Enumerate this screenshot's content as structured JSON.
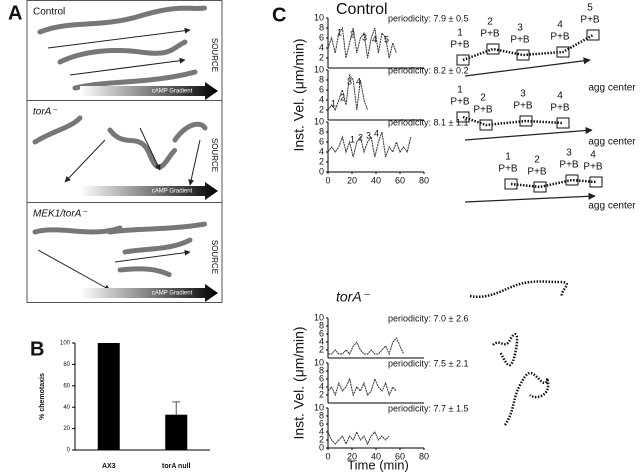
{
  "panel_labels": [
    "A",
    "B",
    "C"
  ],
  "panel_a": {
    "panels": [
      {
        "label": "Control",
        "side_label": "SOURCE",
        "gradient_label": "cAMP Gradient"
      },
      {
        "label": "torA⁻",
        "side_label": "SOURCE",
        "gradient_label": "cAMP Gradient"
      },
      {
        "label": "MEK1/torA⁻",
        "side_label": "SOURCE",
        "gradient_label": "cAMP Gradient"
      }
    ]
  },
  "panel_c": {
    "groups": [
      "Control",
      "torA⁻"
    ],
    "tracks": [
      {
        "markers": [
          "1",
          "2",
          "3",
          "4",
          "5"
        ],
        "marker_label": "P+B",
        "end_label": "agg center"
      },
      {
        "markers": [
          "1",
          "2",
          "3",
          "4"
        ],
        "marker_label": "P+B",
        "end_label": "agg center"
      },
      {
        "markers": [
          "1",
          "2",
          "3",
          "4"
        ],
        "marker_label": "P+B",
        "end_label": "agg center"
      }
    ]
  },
  "chart_data": [
    {
      "type": "bar",
      "ylabel": "% chemotaxis",
      "categories": [
        "AX3",
        "torA null"
      ],
      "values": [
        100,
        33
      ],
      "errors": [
        null,
        12
      ],
      "color": "#000000",
      "ylim": [
        0,
        100
      ],
      "yticks": [
        0,
        20,
        40,
        60,
        80,
        100
      ]
    },
    {
      "type": "line",
      "ylabel": "Inst. Vel. (μm/min)",
      "annotation": "periodicity: 7.9 ± 0.5",
      "peak_labels": [
        "1",
        "2",
        "3",
        "4",
        "5"
      ],
      "x": [
        0,
        3,
        6,
        9,
        12,
        15,
        18,
        21,
        24,
        27,
        30,
        33,
        36,
        39,
        42,
        45,
        48,
        51,
        54,
        57
      ],
      "values": [
        4,
        6,
        3,
        7,
        8,
        2,
        5,
        8,
        3,
        6,
        7,
        2,
        6,
        8,
        3,
        7,
        6,
        2,
        5,
        3
      ],
      "color": "#333333",
      "xlim": [
        0,
        80
      ],
      "ylim": [
        0,
        10
      ],
      "yticks": [
        2,
        4,
        6,
        8,
        10
      ]
    },
    {
      "type": "line",
      "annotation": "periodicity: 8.2 ± 0.2",
      "peak_labels": [
        "1",
        "2",
        "3",
        "4"
      ],
      "x": [
        0,
        3,
        6,
        9,
        12,
        15,
        18,
        21,
        24,
        27,
        30,
        33
      ],
      "values": [
        2,
        3,
        2,
        4,
        6,
        3,
        9,
        8,
        2,
        8,
        4,
        2
      ],
      "color": "#333333",
      "xlim": [
        0,
        80
      ],
      "ylim": [
        0,
        10
      ],
      "yticks": [
        2,
        4,
        6,
        8,
        10
      ]
    },
    {
      "type": "line",
      "annotation": "periodicity: 8.1 ± 1.1",
      "peak_labels": [
        "1",
        "2",
        "3",
        "4"
      ],
      "x": [
        0,
        3,
        6,
        9,
        12,
        15,
        18,
        21,
        24,
        27,
        30,
        33,
        36,
        39,
        42,
        45,
        48,
        51,
        54,
        57,
        60,
        63,
        66,
        69
      ],
      "values": [
        4,
        5,
        4,
        5,
        7,
        4,
        6,
        3,
        6,
        7,
        4,
        6,
        7,
        3,
        6,
        8,
        3,
        5,
        4,
        6,
        4,
        5,
        4,
        7
      ],
      "color": "#333333",
      "xlim": [
        0,
        80
      ],
      "ylim": [
        0,
        10
      ],
      "yticks": [
        0,
        2,
        4,
        6,
        8,
        10
      ],
      "xticks": [
        0,
        20,
        40,
        60,
        80
      ]
    },
    {
      "type": "line",
      "ylabel": "Inst. Vel. (μm/min)",
      "annotation": "periodicity: 7.0 ± 2.6",
      "x": [
        0,
        3,
        6,
        9,
        12,
        15,
        18,
        21,
        24,
        27,
        30,
        33,
        36,
        39,
        42,
        45,
        48,
        51,
        54,
        57,
        60,
        63
      ],
      "values": [
        1,
        1,
        2,
        1,
        1,
        2,
        1,
        3,
        4,
        2,
        1,
        1,
        2,
        1,
        1,
        2,
        3,
        1,
        4,
        5,
        3,
        1
      ],
      "color": "#333333",
      "xlim": [
        0,
        80
      ],
      "ylim": [
        0,
        10
      ],
      "yticks": [
        2,
        4,
        6,
        8,
        10
      ]
    },
    {
      "type": "line",
      "annotation": "periodicity: 7.5 ± 2.1",
      "x": [
        0,
        3,
        6,
        9,
        12,
        15,
        18,
        21,
        24,
        27,
        30,
        33,
        36,
        39,
        42,
        45,
        48,
        51,
        54,
        57
      ],
      "values": [
        3,
        4,
        2,
        5,
        3,
        4,
        6,
        2,
        4,
        3,
        5,
        2,
        3,
        6,
        4,
        3,
        5,
        2,
        4,
        3
      ],
      "color": "#333333",
      "xlim": [
        0,
        80
      ],
      "ylim": [
        0,
        10
      ],
      "yticks": [
        2,
        4,
        6,
        8,
        10
      ]
    },
    {
      "type": "line",
      "xlabel": "Time (min)",
      "annotation": "periodicity: 7.7 ± 1.5",
      "x": [
        0,
        3,
        6,
        9,
        12,
        15,
        18,
        21,
        24,
        27,
        30,
        33,
        36,
        39,
        42,
        45,
        48,
        51
      ],
      "values": [
        4,
        2,
        1,
        2,
        3,
        1,
        3,
        2,
        4,
        2,
        3,
        1,
        3,
        4,
        2,
        3,
        2,
        3
      ],
      "color": "#333333",
      "xlim": [
        0,
        80
      ],
      "ylim": [
        0,
        10
      ],
      "yticks": [
        0,
        2,
        4,
        6,
        8,
        10
      ],
      "xticks": [
        0,
        20,
        40,
        60,
        80
      ]
    }
  ]
}
